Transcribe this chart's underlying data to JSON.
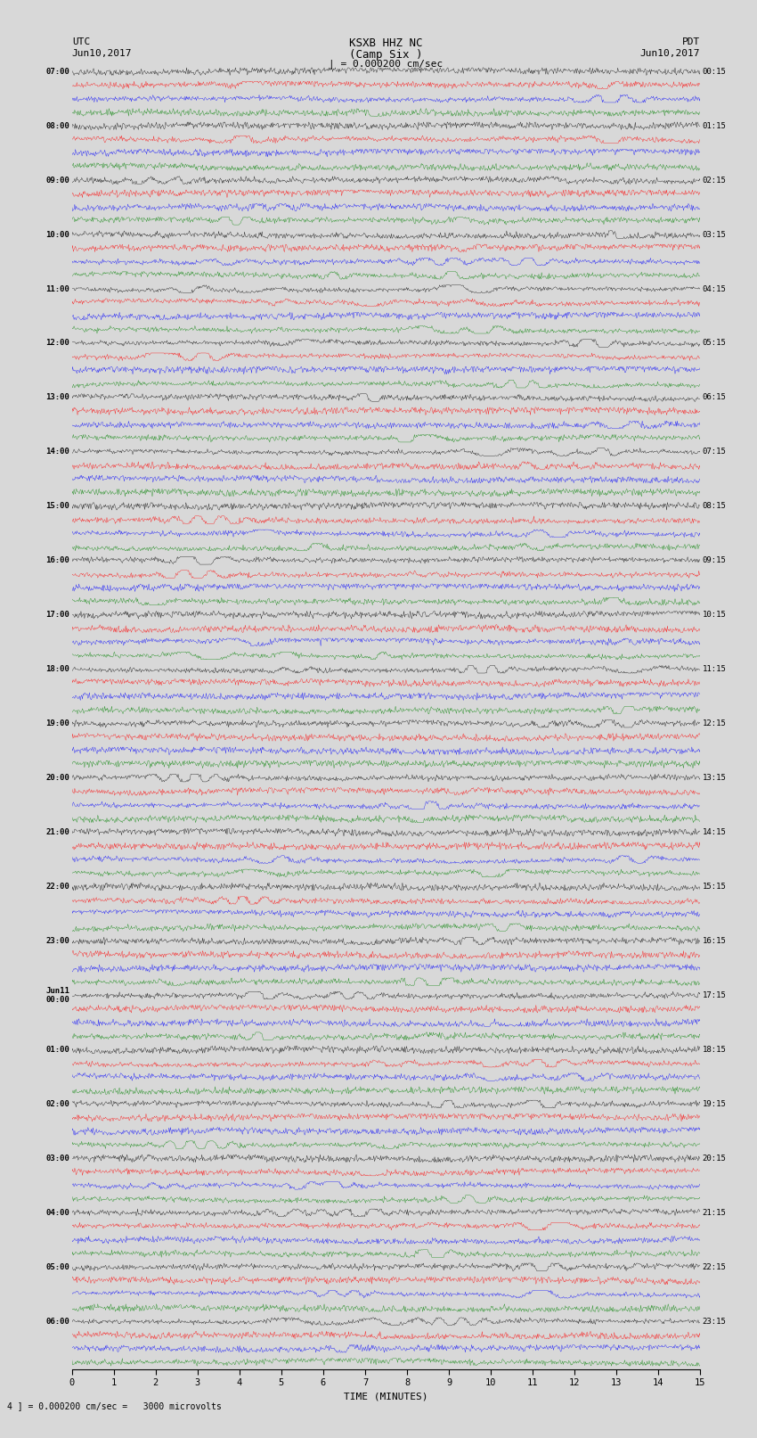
{
  "title_line1": "KSXB HHZ NC",
  "title_line2": "(Camp Six )",
  "scale_label": "| = 0.000200 cm/sec",
  "bottom_label": "4 ] = 0.000200 cm/sec =   3000 microvolts",
  "xlabel": "TIME (MINUTES)",
  "left_header_line1": "UTC",
  "left_header_line2": "Jun10,2017",
  "right_header_line1": "PDT",
  "right_header_line2": "Jun10,2017",
  "left_times": [
    "07:00",
    "08:00",
    "09:00",
    "10:00",
    "11:00",
    "12:00",
    "13:00",
    "14:00",
    "15:00",
    "16:00",
    "17:00",
    "18:00",
    "19:00",
    "20:00",
    "21:00",
    "22:00",
    "23:00",
    "Jun11",
    "00:00",
    "01:00",
    "02:00",
    "03:00",
    "04:00",
    "05:00",
    "06:00"
  ],
  "left_times_special": [
    17
  ],
  "right_times": [
    "00:15",
    "01:15",
    "02:15",
    "03:15",
    "04:15",
    "05:15",
    "06:15",
    "07:15",
    "08:15",
    "09:15",
    "10:15",
    "11:15",
    "12:15",
    "13:15",
    "14:15",
    "15:15",
    "16:15",
    "17:15",
    "18:15",
    "19:15",
    "20:15",
    "21:15",
    "22:15",
    "23:15"
  ],
  "n_rows": 24,
  "traces_per_row": 4,
  "colors": [
    "black",
    "red",
    "blue",
    "green"
  ],
  "xlim": [
    0,
    15
  ],
  "xticks": [
    0,
    1,
    2,
    3,
    4,
    5,
    6,
    7,
    8,
    9,
    10,
    11,
    12,
    13,
    14,
    15
  ],
  "background_color": "#d8d8d8",
  "trace_amplitude": 0.28,
  "fig_width": 8.5,
  "fig_height": 16.13
}
